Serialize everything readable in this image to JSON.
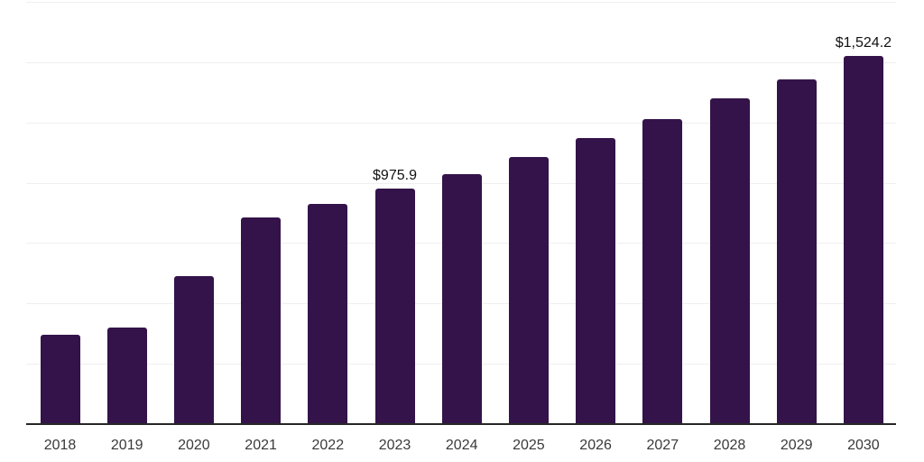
{
  "chart_data": {
    "type": "bar",
    "title": "",
    "xlabel": "",
    "ylabel": "",
    "categories": [
      "2018",
      "2019",
      "2020",
      "2021",
      "2022",
      "2023",
      "2024",
      "2025",
      "2026",
      "2027",
      "2028",
      "2029",
      "2030"
    ],
    "values": [
      369,
      399,
      612,
      856,
      914,
      975.9,
      1037,
      1108,
      1186,
      1265,
      1350,
      1429,
      1524.2
    ],
    "data_labels": [
      "",
      "",
      "",
      "",
      "",
      "$975.9",
      "",
      "",
      "",
      "",
      "",
      "",
      "$1,524.2"
    ],
    "ylim": [
      0,
      1750
    ],
    "gridline_step": 250,
    "grid": true,
    "legend": false,
    "y_axis_ticks_visible": false
  },
  "colors": {
    "bar": "#331349",
    "axis": "#262626",
    "gridline": "#efefef",
    "tick_label": "#3a3a3a",
    "data_label": "#111111",
    "background": "#ffffff"
  }
}
